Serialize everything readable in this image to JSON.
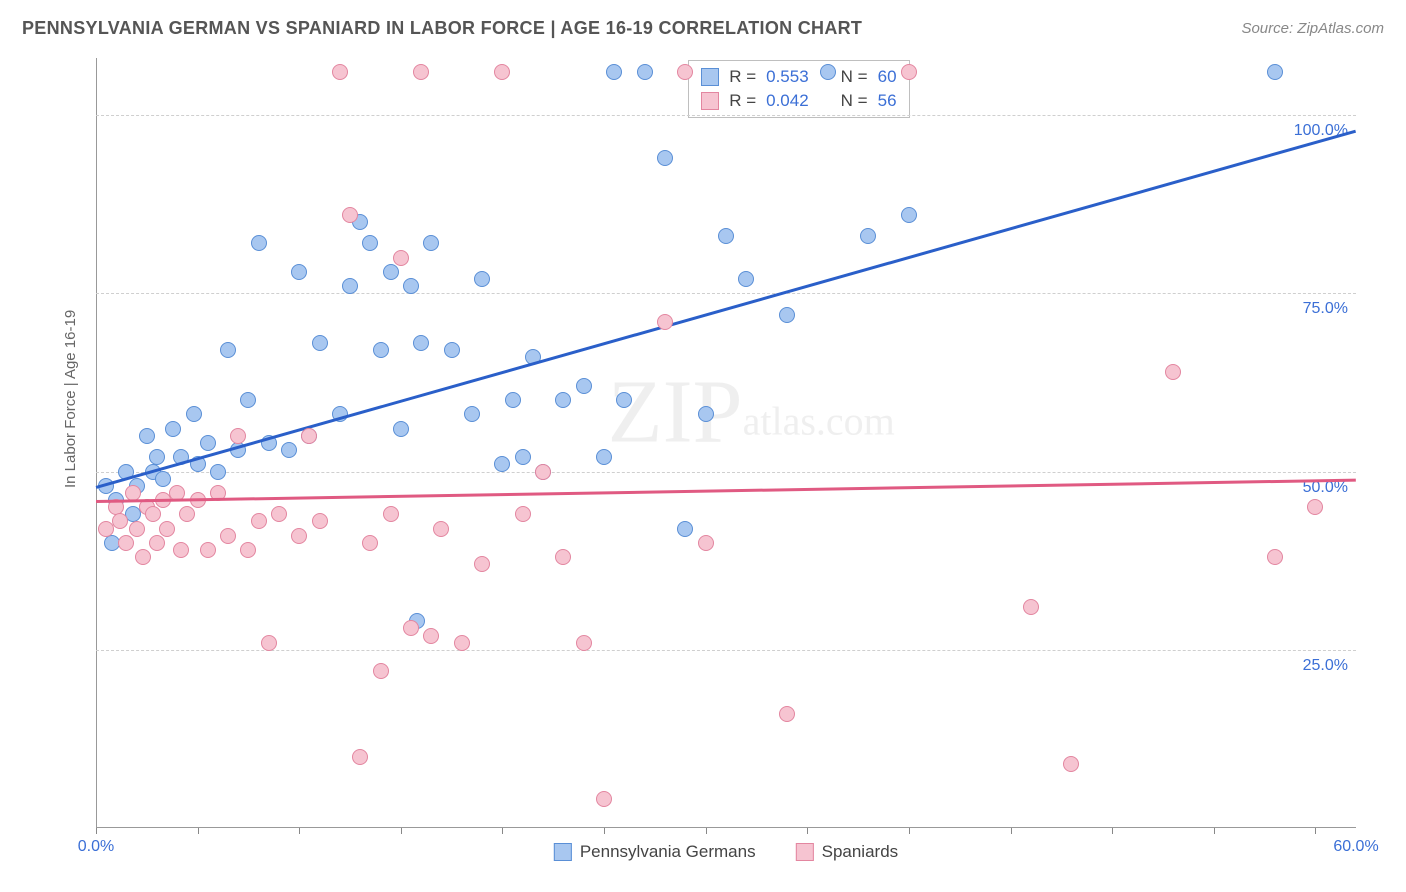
{
  "header": {
    "title": "PENNSYLVANIA GERMAN VS SPANIARD IN LABOR FORCE | AGE 16-19 CORRELATION CHART",
    "source": "Source: ZipAtlas.com"
  },
  "y_axis": {
    "label": "In Labor Force | Age 16-19",
    "ticks": [
      25.0,
      50.0,
      75.0,
      100.0
    ],
    "tick_labels": [
      "25.0%",
      "50.0%",
      "75.0%",
      "100.0%"
    ],
    "ymin": 0,
    "ymax": 108
  },
  "x_axis": {
    "xmin": 0,
    "xmax": 62,
    "tick_positions": [
      0,
      5,
      10,
      15,
      20,
      25,
      30,
      35,
      40,
      45,
      50,
      55,
      60
    ],
    "end_labels": {
      "left": "0.0%",
      "right": "60.0%"
    }
  },
  "series": [
    {
      "name": "Pennsylvania Germans",
      "fill": "#a8c7f0",
      "stroke": "#5a8fd6",
      "R": "0.553",
      "N": "60",
      "trend": {
        "x1": 0,
        "y1": 48,
        "x2": 62,
        "y2": 98,
        "color": "#2a5fc9",
        "width": 2.5
      },
      "points": [
        [
          0.5,
          48
        ],
        [
          0.8,
          40
        ],
        [
          1.0,
          46
        ],
        [
          1.5,
          50
        ],
        [
          1.8,
          44
        ],
        [
          2.0,
          48
        ],
        [
          2.5,
          55
        ],
        [
          2.8,
          50
        ],
        [
          3.0,
          52
        ],
        [
          3.3,
          49
        ],
        [
          3.8,
          56
        ],
        [
          4.2,
          52
        ],
        [
          4.8,
          58
        ],
        [
          5.0,
          51
        ],
        [
          5.5,
          54
        ],
        [
          6.0,
          50
        ],
        [
          6.5,
          67
        ],
        [
          7.0,
          53
        ],
        [
          7.5,
          60
        ],
        [
          8.0,
          82
        ],
        [
          8.5,
          54
        ],
        [
          9.5,
          53
        ],
        [
          10.0,
          78
        ],
        [
          10.5,
          55
        ],
        [
          11.0,
          68
        ],
        [
          12.0,
          58
        ],
        [
          12.5,
          76
        ],
        [
          13.0,
          85
        ],
        [
          13.5,
          82
        ],
        [
          14.0,
          67
        ],
        [
          14.5,
          78
        ],
        [
          15.0,
          56
        ],
        [
          15.5,
          76
        ],
        [
          15.8,
          29
        ],
        [
          16.0,
          68
        ],
        [
          16.5,
          82
        ],
        [
          17.5,
          67
        ],
        [
          18.5,
          58
        ],
        [
          19.0,
          77
        ],
        [
          20.0,
          51
        ],
        [
          20.5,
          60
        ],
        [
          21.0,
          52
        ],
        [
          21.5,
          66
        ],
        [
          22.0,
          50
        ],
        [
          23.0,
          60
        ],
        [
          24.0,
          62
        ],
        [
          25.0,
          52
        ],
        [
          25.5,
          106
        ],
        [
          26.0,
          60
        ],
        [
          27.0,
          106
        ],
        [
          28.0,
          94
        ],
        [
          29.0,
          42
        ],
        [
          30.0,
          58
        ],
        [
          31.0,
          83
        ],
        [
          32.0,
          77
        ],
        [
          34.0,
          72
        ],
        [
          36.0,
          106
        ],
        [
          38.0,
          83
        ],
        [
          40.0,
          86
        ],
        [
          58.0,
          106
        ]
      ]
    },
    {
      "name": "Spaniards",
      "fill": "#f6c4d1",
      "stroke": "#e386a0",
      "R": "0.042",
      "N": "56",
      "trend": {
        "x1": 0,
        "y1": 46,
        "x2": 62,
        "y2": 49,
        "color": "#e05a82",
        "width": 2.5
      },
      "points": [
        [
          0.5,
          42
        ],
        [
          1.0,
          45
        ],
        [
          1.2,
          43
        ],
        [
          1.5,
          40
        ],
        [
          1.8,
          47
        ],
        [
          2.0,
          42
        ],
        [
          2.3,
          38
        ],
        [
          2.5,
          45
        ],
        [
          2.8,
          44
        ],
        [
          3.0,
          40
        ],
        [
          3.3,
          46
        ],
        [
          3.5,
          42
        ],
        [
          4.0,
          47
        ],
        [
          4.2,
          39
        ],
        [
          4.5,
          44
        ],
        [
          5.0,
          46
        ],
        [
          5.5,
          39
        ],
        [
          6.0,
          47
        ],
        [
          6.5,
          41
        ],
        [
          7.0,
          55
        ],
        [
          7.5,
          39
        ],
        [
          8.0,
          43
        ],
        [
          8.5,
          26
        ],
        [
          9.0,
          44
        ],
        [
          10.0,
          41
        ],
        [
          10.5,
          55
        ],
        [
          11.0,
          43
        ],
        [
          12.0,
          106
        ],
        [
          12.5,
          86
        ],
        [
          13.0,
          10
        ],
        [
          13.5,
          40
        ],
        [
          14.0,
          22
        ],
        [
          14.5,
          44
        ],
        [
          15.0,
          80
        ],
        [
          15.5,
          28
        ],
        [
          16.0,
          106
        ],
        [
          16.5,
          27
        ],
        [
          17.0,
          42
        ],
        [
          18.0,
          26
        ],
        [
          19.0,
          37
        ],
        [
          20.0,
          106
        ],
        [
          21.0,
          44
        ],
        [
          22.0,
          50
        ],
        [
          23.0,
          38
        ],
        [
          24.0,
          26
        ],
        [
          25.0,
          4
        ],
        [
          28.0,
          71
        ],
        [
          29.0,
          106
        ],
        [
          30.0,
          40
        ],
        [
          34.0,
          16
        ],
        [
          40.0,
          106
        ],
        [
          46.0,
          31
        ],
        [
          48.0,
          9
        ],
        [
          53.0,
          64
        ],
        [
          58.0,
          38
        ],
        [
          60.0,
          45
        ]
      ]
    }
  ],
  "legend": {
    "items": [
      "Pennsylvania Germans",
      "Spaniards"
    ]
  },
  "watermark": {
    "main": "ZIP",
    "tail": "atlas.com"
  },
  "styling": {
    "background_color": "#ffffff",
    "grid_color": "#cfcfcf",
    "axis_color": "#999999",
    "title_color": "#555555",
    "value_color": "#3b6fd6",
    "point_radius": 8
  }
}
